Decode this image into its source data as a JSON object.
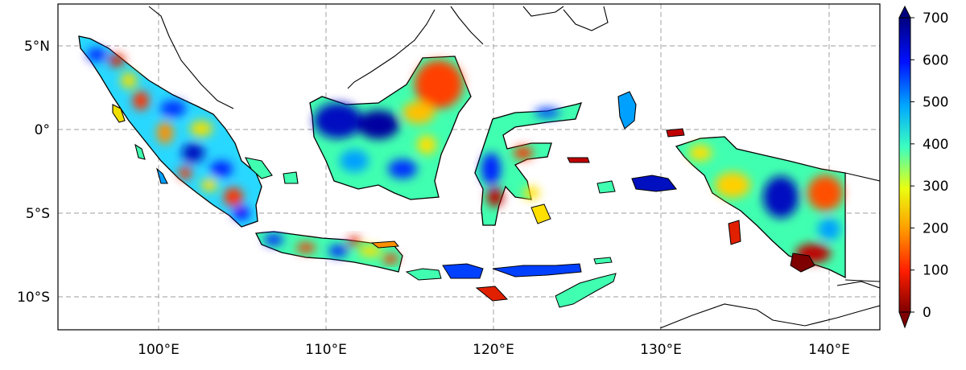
{
  "map": {
    "lon_ticks": [
      "100°E",
      "110°E",
      "120°E",
      "130°E",
      "140°E"
    ],
    "lat_ticks": [
      "5°N",
      "0°",
      "5°S",
      "10°S"
    ],
    "lon_range": [
      94,
      143
    ],
    "lat_range": [
      -12,
      7.5
    ],
    "gridlines": "dashed",
    "region": "Indonesia"
  },
  "colorbar": {
    "ticks": [
      "0",
      "100",
      "200",
      "300",
      "400",
      "500",
      "600",
      "700"
    ],
    "range": [
      0,
      700
    ],
    "extend": "both",
    "colormap": "jet_r",
    "stops": [
      "#7f0000",
      "#ff2000",
      "#ff9000",
      "#f6f000",
      "#40ffb0",
      "#00a0ff",
      "#0000ff",
      "#00007f"
    ]
  }
}
